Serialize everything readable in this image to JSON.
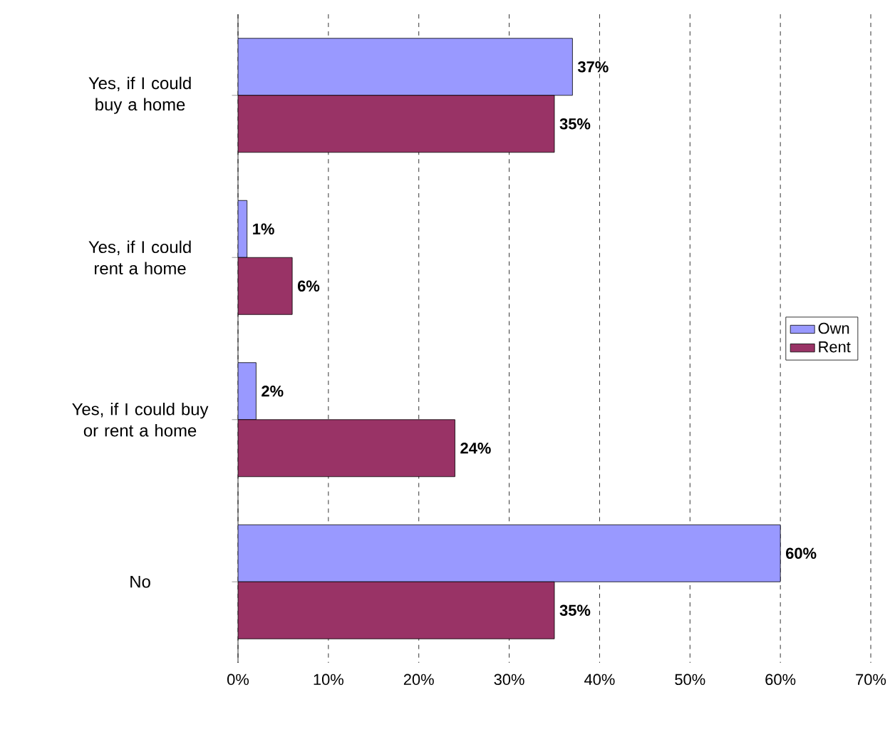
{
  "chart_data": {
    "type": "bar",
    "orientation": "horizontal",
    "categories": [
      "Yes, if I could buy a home",
      "Yes, if I could rent a home",
      "Yes, if I could buy or rent a home",
      "No"
    ],
    "series": [
      {
        "name": "Own",
        "color": "#9999ff",
        "values": [
          37,
          1,
          2,
          60
        ],
        "value_labels": [
          "37%",
          "1%",
          "2%",
          "60%"
        ]
      },
      {
        "name": "Rent",
        "color": "#993366",
        "values": [
          35,
          6,
          24,
          35
        ],
        "value_labels": [
          "35%",
          "6%",
          "24%",
          "35%"
        ]
      }
    ],
    "xlim": [
      0,
      70
    ],
    "xticks": [
      {
        "value": 0,
        "label": "0%"
      },
      {
        "value": 10,
        "label": "10%"
      },
      {
        "value": 20,
        "label": "20%"
      },
      {
        "value": 30,
        "label": "30%"
      },
      {
        "value": 40,
        "label": "40%"
      },
      {
        "value": 50,
        "label": "50%"
      },
      {
        "value": 60,
        "label": "60%"
      },
      {
        "value": 70,
        "label": "70%"
      }
    ],
    "grid": "x",
    "legend": "right"
  }
}
